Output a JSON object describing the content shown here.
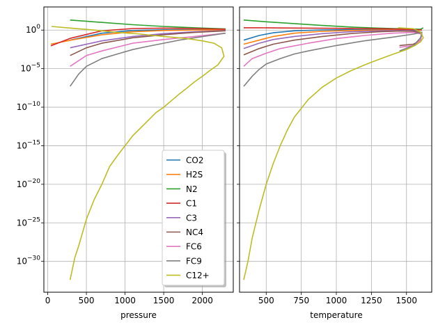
{
  "chart_data": {
    "type": "line",
    "yscale": "log",
    "ylim": [
      1e-34,
      1000.0
    ],
    "yticks": [
      {
        "value": 1,
        "label": "10^0",
        "mant": "10",
        "exp": "0"
      },
      {
        "value": 1e-05,
        "label": "10^-5",
        "mant": "10",
        "exp": "−5"
      },
      {
        "value": 1e-10,
        "label": "10^-10",
        "mant": "10",
        "exp": "−10"
      },
      {
        "value": 1e-15,
        "label": "10^-15",
        "mant": "10",
        "exp": "−15"
      },
      {
        "value": 1e-20,
        "label": "10^-20",
        "mant": "10",
        "exp": "−20"
      },
      {
        "value": 1e-25,
        "label": "10^-25",
        "mant": "10",
        "exp": "−25"
      },
      {
        "value": 1e-30,
        "label": "10^-30",
        "mant": "10",
        "exp": "−30"
      }
    ],
    "series_meta": [
      {
        "name": "CO2",
        "color": "#1f77b4"
      },
      {
        "name": "H2S",
        "color": "#ff7f0e"
      },
      {
        "name": "N2",
        "color": "#2ca02c"
      },
      {
        "name": "C1",
        "color": "#d62728"
      },
      {
        "name": "C3",
        "color": "#9467bd"
      },
      {
        "name": "NC4",
        "color": "#8c564b"
      },
      {
        "name": "FC6",
        "color": "#e377c2"
      },
      {
        "name": "FC9",
        "color": "#7f7f7f"
      },
      {
        "name": "C12+",
        "color": "#bcbd22"
      }
    ],
    "legend_position": "lower-right of left panel",
    "panels": [
      {
        "xlabel": "pressure",
        "xlim": [
          -50,
          2400
        ],
        "xticks": [
          0,
          500,
          1000,
          1500,
          2000
        ],
        "xtick_labels": [
          "0",
          "500",
          "1000",
          "1500",
          "2000"
        ],
        "series": [
          {
            "name": "CO2",
            "x": [
              290,
              700,
              1100,
              1500,
              1900,
              2300
            ],
            "y": [
              0.05,
              0.4,
              0.9,
              1.1,
              1.15,
              1.2
            ]
          },
          {
            "name": "H2S",
            "x": [
              40,
              300,
              700,
              1100,
              1500,
              1900,
              2300
            ],
            "y": [
              0.015,
              0.05,
              0.25,
              0.6,
              0.9,
              1.0,
              1.1
            ]
          },
          {
            "name": "N2",
            "x": [
              290,
              700,
              1100,
              1500,
              1900,
              2300
            ],
            "y": [
              20,
              10,
              5,
              3,
              2,
              1.4
            ]
          },
          {
            "name": "C1",
            "x": [
              40,
              300,
              700,
              1100,
              1500,
              1900,
              2300
            ],
            "y": [
              0.009,
              0.09,
              0.8,
              1.6,
              1.8,
              1.6,
              1.3
            ]
          },
          {
            "name": "C3",
            "x": [
              290,
              700,
              1100,
              1500,
              1900,
              2300
            ],
            "y": [
              0.005,
              0.04,
              0.15,
              0.35,
              0.6,
              0.9
            ]
          },
          {
            "name": "NC4",
            "x": [
              290,
              500,
              700,
              1100,
              1500,
              1900,
              2300
            ],
            "y": [
              0.0005,
              0.005,
              0.02,
              0.1,
              0.25,
              0.5,
              0.8
            ]
          },
          {
            "name": "FC6",
            "x": [
              290,
              500,
              700,
              1100,
              1500,
              1900,
              2300
            ],
            "y": [
              2e-05,
              0.0005,
              0.002,
              0.02,
              0.06,
              0.15,
              0.4
            ]
          },
          {
            "name": "FC9",
            "x": [
              290,
              400,
              500,
              700,
              900,
              1100,
              1300,
              1500,
              1700,
              1900,
              2100,
              2300
            ],
            "y": [
              5e-08,
              2e-06,
              2e-05,
              0.0002,
              0.0008,
              0.003,
              0.008,
              0.02,
              0.05,
              0.1,
              0.2,
              0.4
            ]
          },
          {
            "name": "C12+",
            "x": [
              290,
              350,
              400,
              500,
              600,
              700,
              800,
              900,
              1000,
              1100,
              1200,
              1300,
              1400,
              1500,
              1600,
              1700,
              1800,
              1900,
              2000,
              2100,
              2200,
              2280,
              2250,
              2150,
              2000,
              1800,
              1500,
              1200,
              900,
              600,
              300,
              50
            ],
            "y": [
              4e-33,
              3e-30,
              1e-28,
              3e-25,
              1e-22,
              1e-20,
              2e-18,
              5e-17,
              1e-15,
              2e-14,
              2e-13,
              2e-12,
              2e-11,
              1e-10,
              7e-10,
              5e-09,
              3e-08,
              2e-07,
              1e-06,
              6e-06,
              3e-05,
              0.0004,
              0.005,
              0.02,
              0.04,
              0.08,
              0.15,
              0.3,
              0.5,
              1,
              1.8,
              3
            ]
          }
        ]
      },
      {
        "xlabel": "temperature",
        "xlim": [
          310,
          1680
        ],
        "xticks": [
          500,
          750,
          1000,
          1250,
          1500
        ],
        "xtick_labels": [
          "500",
          "750",
          "1000",
          "1250",
          "1500"
        ],
        "series": [
          {
            "name": "CO2",
            "x": [
              340,
              450,
              550,
              700,
              900,
              1100,
              1300,
              1450,
              1550,
              1610
            ],
            "y": [
              0.05,
              0.2,
              0.45,
              0.8,
              1.05,
              1.15,
              1.2,
              1.2,
              1.0,
              0.5
            ]
          },
          {
            "name": "H2S",
            "x": [
              340,
              450,
              550,
              700,
              900,
              1100,
              1300,
              1450,
              1550,
              1610
            ],
            "y": [
              0.015,
              0.05,
              0.15,
              0.4,
              0.7,
              0.9,
              1.0,
              1.0,
              0.8,
              0.4
            ]
          },
          {
            "name": "N2",
            "x": [
              340,
              500,
              700,
              900,
              1100,
              1300,
              1500,
              1600,
              1620
            ],
            "y": [
              20,
              12,
              7,
              4,
              2.5,
              1.8,
              1.4,
              1.3,
              2
            ]
          },
          {
            "name": "C1",
            "x": [
              340,
              450,
              600,
              800,
              1000,
              1200,
              1400,
              1550,
              1610
            ],
            "y": [
              2,
              2,
              1.9,
              1.8,
              1.7,
              1.6,
              1.4,
              1.2,
              1.0
            ]
          },
          {
            "name": "C3",
            "x": [
              340,
              450,
              550,
              700,
              900,
              1100,
              1300,
              1450,
              1550,
              1610
            ],
            "y": [
              0.004,
              0.02,
              0.06,
              0.15,
              0.35,
              0.6,
              0.8,
              0.9,
              0.8,
              0.3
            ]
          },
          {
            "name": "NC4",
            "x": [
              340,
              450,
              550,
              700,
              900,
              1100,
              1300,
              1450,
              1550,
              1610,
              1600,
              1550,
              1450
            ],
            "y": [
              0.0006,
              0.004,
              0.015,
              0.05,
              0.15,
              0.35,
              0.6,
              0.75,
              0.7,
              0.3,
              0.05,
              0.015,
              0.01
            ]
          },
          {
            "name": "FC6",
            "x": [
              340,
              400,
              500,
              600,
              800,
              1000,
              1200,
              1400,
              1550,
              1610,
              1600,
              1550,
              1450
            ],
            "y": [
              2e-05,
              0.0002,
              0.001,
              0.004,
              0.02,
              0.08,
              0.2,
              0.4,
              0.5,
              0.3,
              0.05,
              0.01,
              0.006
            ]
          },
          {
            "name": "FC9",
            "x": [
              340,
              400,
              450,
              500,
              600,
              700,
              800,
              1000,
              1200,
              1400,
              1550,
              1610,
              1600,
              1550,
              1450
            ],
            "y": [
              5e-08,
              1e-06,
              8e-06,
              4e-05,
              0.0002,
              0.0008,
              0.002,
              0.01,
              0.04,
              0.12,
              0.3,
              0.5,
              0.1,
              0.01,
              0.002
            ]
          },
          {
            "name": "C12+",
            "x": [
              340,
              370,
              400,
              450,
              500,
              550,
              600,
              650,
              700,
              800,
              900,
              1000,
              1100,
              1200,
              1300,
              1400,
              1500,
              1560,
              1600,
              1620,
              1600,
              1550,
              1440
            ],
            "y": [
              4e-33,
              1e-30,
              1e-27,
              5e-24,
              1e-20,
              5e-18,
              1e-15,
              1e-13,
              5e-12,
              1e-09,
              4e-08,
              6e-07,
              5e-06,
              3e-05,
              0.00015,
              0.0007,
              0.003,
              0.01,
              0.03,
              0.1,
              0.6,
              1.5,
              2
            ]
          }
        ]
      }
    ]
  }
}
